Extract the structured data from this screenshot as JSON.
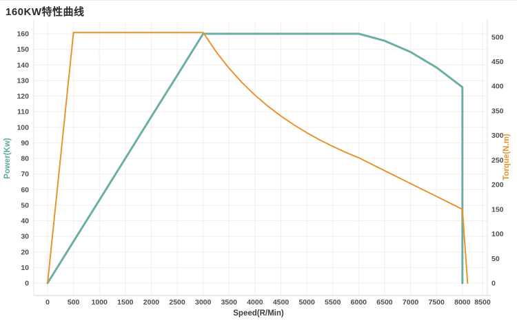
{
  "title": "160KW特性曲线",
  "colors": {
    "power_line": "#6aafa5",
    "torque_line": "#e8942e",
    "grid_line": "#f4eded",
    "axis_line": "#d8d0d0",
    "side_axis_line": "#e7e2e2",
    "tick_text": "#4e4e4e"
  },
  "chart_data": {
    "type": "line",
    "title": "160KW特性曲线",
    "xlabel": "Speed(R/Min)",
    "x_ticks": [
      0,
      500,
      1000,
      1500,
      2000,
      2500,
      3000,
      3500,
      4000,
      4500,
      5000,
      5500,
      6000,
      6500,
      7000,
      7500,
      8000,
      8500
    ],
    "y_left": {
      "label": "Power(Kw)",
      "ticks": [
        0,
        10,
        20,
        30,
        40,
        50,
        60,
        70,
        80,
        90,
        100,
        110,
        120,
        130,
        140,
        150,
        160
      ],
      "min": 0,
      "max": 160,
      "color": "#5fa89f"
    },
    "y_right": {
      "label": "Torque(N.m)",
      "ticks": [
        0,
        50,
        100,
        150,
        200,
        250,
        300,
        350,
        400,
        450,
        500
      ],
      "min": 0,
      "max": 500,
      "color": "#e8942e"
    },
    "grid": true,
    "legend": "none",
    "series": [
      {
        "name": "Power",
        "axis": "left",
        "unit": "Kw",
        "color": "#6aafa5",
        "line_width": 3,
        "points": [
          [
            0,
            0
          ],
          [
            500,
            26.7
          ],
          [
            1000,
            53.3
          ],
          [
            1500,
            80
          ],
          [
            2000,
            106.7
          ],
          [
            2500,
            133.3
          ],
          [
            3000,
            160
          ],
          [
            3500,
            160
          ],
          [
            4000,
            160
          ],
          [
            4500,
            160
          ],
          [
            5000,
            160
          ],
          [
            5500,
            160
          ],
          [
            6000,
            160
          ],
          [
            6500,
            155.5
          ],
          [
            7000,
            148.3
          ],
          [
            7500,
            138.4
          ],
          [
            8000,
            125.7
          ],
          [
            8000,
            0
          ]
        ]
      },
      {
        "name": "Torque",
        "axis": "right",
        "unit": "N.m",
        "color": "#e8942e",
        "line_width": 2,
        "points": [
          [
            0,
            0
          ],
          [
            500,
            509.3
          ],
          [
            1000,
            509.3
          ],
          [
            1500,
            509.3
          ],
          [
            2000,
            509.3
          ],
          [
            2500,
            509.3
          ],
          [
            3000,
            509.3
          ],
          [
            3250,
            470.2
          ],
          [
            3500,
            436.6
          ],
          [
            3750,
            407.5
          ],
          [
            4000,
            382
          ],
          [
            4250,
            359.5
          ],
          [
            4500,
            339.6
          ],
          [
            4750,
            321.7
          ],
          [
            5000,
            305.6
          ],
          [
            5250,
            291
          ],
          [
            5500,
            277.8
          ],
          [
            5750,
            265.7
          ],
          [
            6000,
            254.7
          ],
          [
            6500,
            228.5
          ],
          [
            7000,
            202.3
          ],
          [
            7500,
            176.2
          ],
          [
            8000,
            150
          ],
          [
            8100,
            0
          ]
        ]
      }
    ]
  }
}
